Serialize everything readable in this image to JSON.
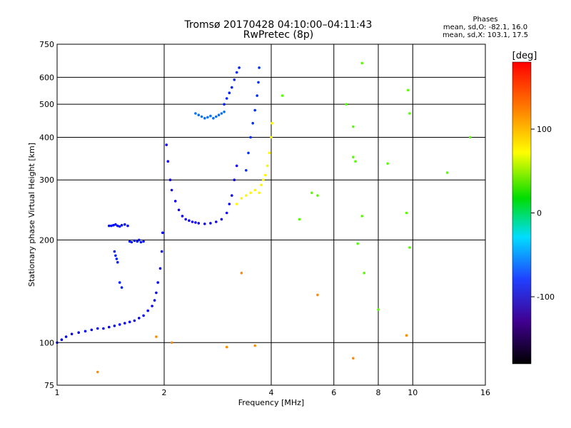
{
  "header": {
    "title": "Tromsø 20170428 04:10:00–04:11:43",
    "subtitle": "RwPretec (8p)",
    "stats_title": "Phases",
    "stats_o": "mean, sd,O: -82.1, 16.0",
    "stats_x": "mean, sd,X: 103.1, 17.5"
  },
  "chart_data": {
    "type": "scatter",
    "xlabel": "Frequency [MHz]",
    "ylabel": "Stationary phase Virtual Height [km]",
    "xscale": "log",
    "yscale": "log",
    "xlim": [
      1,
      16
    ],
    "ylim": [
      75,
      750
    ],
    "xticks": [
      1,
      2,
      4,
      6,
      8,
      10,
      16
    ],
    "yticks": [
      75,
      100,
      200,
      300,
      400,
      500,
      600,
      750
    ],
    "grid": true,
    "colorbar": {
      "label": "[deg]",
      "range": [
        -180,
        180
      ],
      "ticks": [
        100,
        0,
        -100
      ]
    },
    "series": [
      {
        "x": [
          1.0,
          1.03,
          1.06,
          1.1,
          1.15,
          1.2,
          1.25,
          1.3,
          1.35,
          1.4,
          1.45,
          1.5,
          1.55,
          1.6,
          1.65,
          1.7,
          1.75,
          1.8,
          1.85,
          1.88,
          1.9,
          1.92,
          1.95,
          1.97,
          1.98
        ],
        "y": [
          100,
          102,
          104,
          106,
          107,
          108,
          109,
          110,
          110,
          111,
          112,
          113,
          114,
          115,
          116,
          118,
          120,
          124,
          128,
          133,
          140,
          150,
          165,
          185,
          210
        ],
        "phase": -110
      },
      {
        "x": [
          1.4,
          1.42,
          1.44,
          1.46,
          1.48,
          1.5,
          1.52,
          1.55,
          1.58,
          1.6,
          1.62,
          1.65,
          1.68,
          1.7,
          1.72,
          1.75
        ],
        "y": [
          220,
          220,
          221,
          222,
          220,
          219,
          221,
          222,
          220,
          198,
          197,
          199,
          198,
          200,
          197,
          198
        ],
        "phase": -105
      },
      {
        "x": [
          1.45,
          1.46,
          1.47,
          1.48,
          1.5,
          1.52
        ],
        "y": [
          185,
          180,
          176,
          172,
          150,
          145
        ],
        "phase": -100
      },
      {
        "x": [
          2.03,
          2.05,
          2.08,
          2.1,
          2.15,
          2.2,
          2.25,
          2.3,
          2.35,
          2.4,
          2.45,
          2.5,
          2.6,
          2.7,
          2.8,
          2.9,
          3.0,
          3.05,
          3.1,
          3.15,
          3.2
        ],
        "y": [
          380,
          340,
          300,
          280,
          260,
          245,
          235,
          230,
          228,
          226,
          225,
          224,
          223,
          224,
          226,
          230,
          240,
          255,
          270,
          300,
          330
        ],
        "phase": -115
      },
      {
        "x": [
          2.45,
          2.5,
          2.55,
          2.6,
          2.65,
          2.7,
          2.75,
          2.8,
          2.85,
          2.9,
          2.95
        ],
        "y": [
          470,
          465,
          460,
          455,
          458,
          462,
          455,
          460,
          465,
          470,
          475
        ],
        "phase": -75
      },
      {
        "x": [
          2.95,
          3.0,
          3.05,
          3.1,
          3.15,
          3.2,
          3.25
        ],
        "y": [
          500,
          520,
          540,
          560,
          590,
          620,
          640
        ],
        "phase": -100
      },
      {
        "x": [
          3.2,
          3.3,
          3.4,
          3.5,
          3.6,
          3.7,
          3.75,
          3.8,
          3.85,
          3.9,
          3.95,
          4.0,
          4.02
        ],
        "y": [
          255,
          265,
          270,
          275,
          280,
          275,
          290,
          300,
          310,
          330,
          360,
          400,
          440
        ],
        "phase": 110
      },
      {
        "x": [
          3.4,
          3.45,
          3.5,
          3.55,
          3.6,
          3.65,
          3.68,
          3.7
        ],
        "y": [
          320,
          360,
          400,
          440,
          480,
          530,
          580,
          640
        ],
        "phase": -95
      },
      {
        "x": [
          4.3,
          4.8,
          5.2,
          5.4,
          6.5,
          6.8,
          6.8,
          6.9,
          7.2,
          7.2,
          7.0,
          7.3,
          8.0,
          8.5,
          9.6,
          9.7,
          9.8,
          9.8,
          12.5,
          14.5
        ],
        "y": [
          530,
          230,
          275,
          270,
          500,
          350,
          430,
          340,
          660,
          235,
          195,
          160,
          125,
          335,
          240,
          550,
          470,
          190,
          315,
          400
        ],
        "phase": 60
      },
      {
        "x": [
          1.3,
          3.0,
          3.6,
          2.1,
          1.9,
          6.8,
          9.6,
          5.4,
          3.3
        ],
        "y": [
          82,
          97,
          98,
          100,
          104,
          90,
          105,
          138,
          160
        ],
        "phase": 140
      }
    ]
  }
}
